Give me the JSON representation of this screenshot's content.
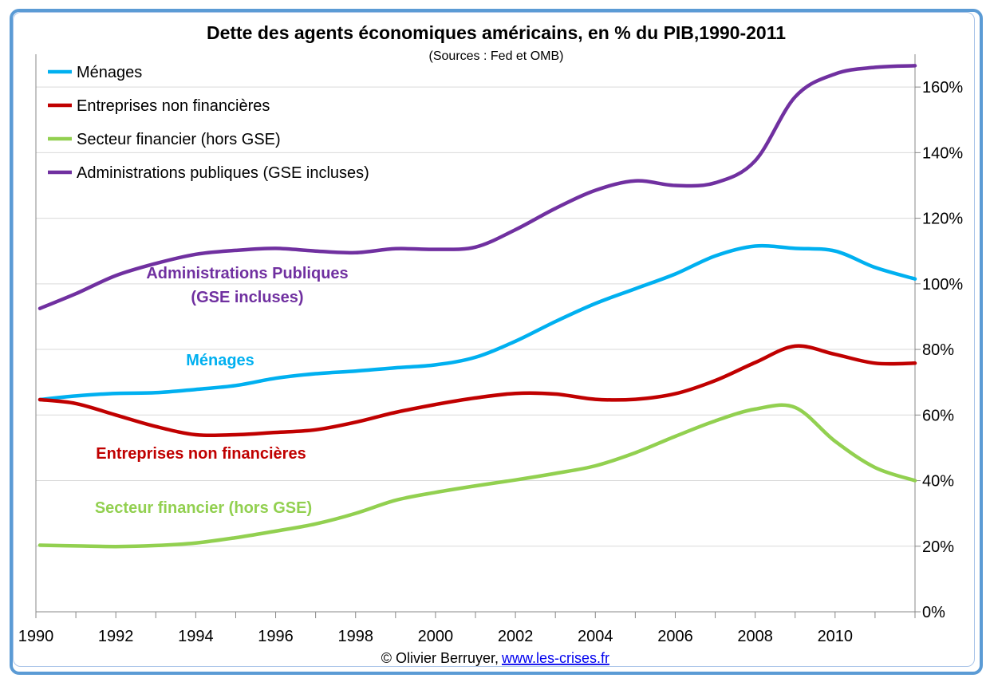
{
  "chart_data": {
    "type": "line",
    "title": "Dette des agents économiques américains, en % du PIB,1990-2011",
    "subtitle": "(Sources : Fed et OMB)",
    "xlim": [
      1990,
      2012
    ],
    "ylim": [
      0,
      170
    ],
    "x_ticks": [
      1990,
      1992,
      1994,
      1996,
      1998,
      2000,
      2002,
      2004,
      2006,
      2008,
      2010
    ],
    "y_ticks": [
      0,
      20,
      40,
      60,
      80,
      100,
      120,
      140,
      160
    ],
    "y_tick_labels": [
      "0%",
      "20%",
      "40%",
      "60%",
      "80%",
      "100%",
      "120%",
      "140%",
      "160%"
    ],
    "grid": true,
    "legend_position": "top-left",
    "series": [
      {
        "name": "Ménages",
        "color": "#00b0f0",
        "points": [
          [
            1990.1,
            64.7
          ],
          [
            1991,
            65.8
          ],
          [
            1992,
            66.6
          ],
          [
            1993,
            66.8
          ],
          [
            1994,
            67.8
          ],
          [
            1995,
            69
          ],
          [
            1996,
            71.2
          ],
          [
            1997,
            72.6
          ],
          [
            1998,
            73.4
          ],
          [
            1999,
            74.4
          ],
          [
            2000,
            75.3
          ],
          [
            2001,
            77.6
          ],
          [
            2002,
            82.5
          ],
          [
            2003,
            88.5
          ],
          [
            2004,
            94
          ],
          [
            2005,
            98.5
          ],
          [
            2006,
            103
          ],
          [
            2007,
            108.5
          ],
          [
            2008,
            111.5
          ],
          [
            2009,
            110.8
          ],
          [
            2010,
            110
          ],
          [
            2011,
            105
          ],
          [
            2012,
            101.5
          ]
        ]
      },
      {
        "name": "Entreprises non financières",
        "color": "#c00000",
        "points": [
          [
            1990.1,
            64.7
          ],
          [
            1991,
            63.5
          ],
          [
            1992,
            60
          ],
          [
            1993,
            56.5
          ],
          [
            1994,
            54
          ],
          [
            1995,
            54
          ],
          [
            1996,
            54.7
          ],
          [
            1997,
            55.5
          ],
          [
            1998,
            57.8
          ],
          [
            1999,
            60.8
          ],
          [
            2000,
            63.2
          ],
          [
            2001,
            65.2
          ],
          [
            2002,
            66.6
          ],
          [
            2003,
            66.4
          ],
          [
            2004,
            64.8
          ],
          [
            2005,
            64.8
          ],
          [
            2006,
            66.5
          ],
          [
            2007,
            70.5
          ],
          [
            2008,
            76
          ],
          [
            2009,
            81
          ],
          [
            2010,
            78.5
          ],
          [
            2011,
            75.8
          ],
          [
            2012,
            75.8
          ]
        ]
      },
      {
        "name": "Secteur financier (hors GSE)",
        "color": "#92d050",
        "points": [
          [
            1990.1,
            20.3
          ],
          [
            1991,
            20.1
          ],
          [
            1992,
            19.9
          ],
          [
            1993,
            20.2
          ],
          [
            1994,
            21
          ],
          [
            1995,
            22.6
          ],
          [
            1996,
            24.6
          ],
          [
            1997,
            26.8
          ],
          [
            1998,
            30
          ],
          [
            1999,
            34
          ],
          [
            2000,
            36.4
          ],
          [
            2001,
            38.4
          ],
          [
            2002,
            40.2
          ],
          [
            2003,
            42.2
          ],
          [
            2004,
            44.5
          ],
          [
            2005,
            48.5
          ],
          [
            2006,
            53.5
          ],
          [
            2007,
            58.2
          ],
          [
            2008,
            61.8
          ],
          [
            2009,
            62.3
          ],
          [
            2010,
            52
          ],
          [
            2011,
            44
          ],
          [
            2012,
            40
          ]
        ]
      },
      {
        "name": "Administrations publiques (GSE incluses)",
        "color": "#7030a0",
        "points": [
          [
            1990.1,
            92.5
          ],
          [
            1991,
            97
          ],
          [
            1992,
            102.5
          ],
          [
            1993,
            106.2
          ],
          [
            1994,
            109
          ],
          [
            1995,
            110.2
          ],
          [
            1996,
            110.8
          ],
          [
            1997,
            110
          ],
          [
            1998,
            109.5
          ],
          [
            1999,
            110.7
          ],
          [
            2000,
            110.5
          ],
          [
            2001,
            111.2
          ],
          [
            2002,
            116.5
          ],
          [
            2003,
            123
          ],
          [
            2004,
            128.5
          ],
          [
            2005,
            131.4
          ],
          [
            2006,
            130
          ],
          [
            2007,
            130.8
          ],
          [
            2008,
            137.5
          ],
          [
            2009,
            157
          ],
          [
            2010,
            164
          ],
          [
            2011,
            166
          ],
          [
            2012,
            166.5
          ]
        ]
      }
    ],
    "annotations": [
      {
        "lines": [
          "Administrations Publiques",
          "(GSE incluses)"
        ],
        "color": "#7030a0"
      },
      {
        "lines": [
          "Ménages"
        ],
        "color": "#00b0f0"
      },
      {
        "lines": [
          "Entreprises non financières"
        ],
        "color": "#c00000"
      },
      {
        "lines": [
          "Secteur financier (hors GSE)"
        ],
        "color": "#92d050"
      }
    ]
  },
  "footer": {
    "copyright": "© Olivier Berruyer,",
    "link": "www.les-crises.fr"
  }
}
